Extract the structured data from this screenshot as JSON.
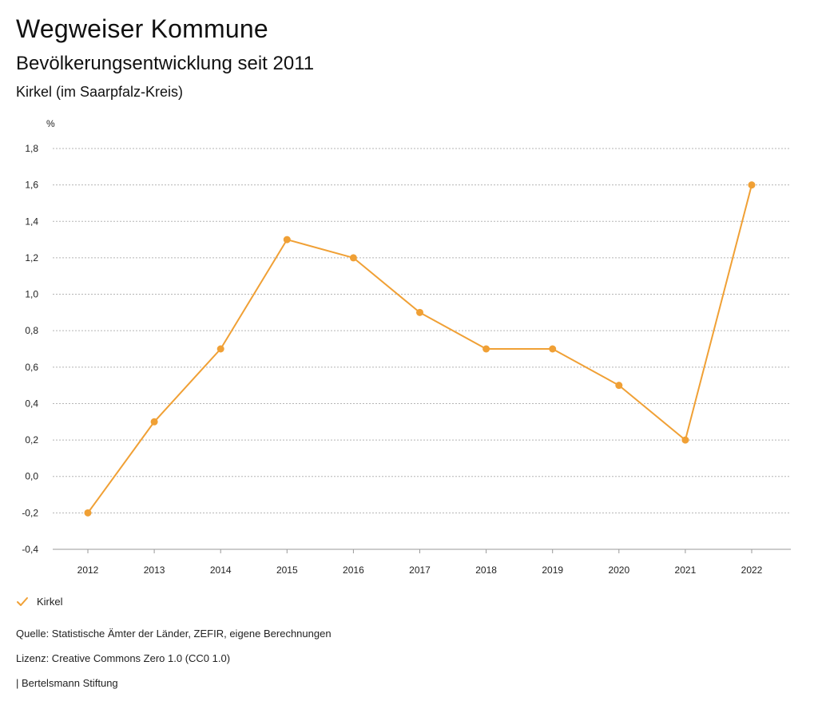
{
  "header": {
    "title": "Wegweiser Kommune",
    "subtitle": "Bevölkerungsentwicklung seit 2011",
    "region": "Kirkel (im Saarpfalz-Kreis)"
  },
  "chart_data": {
    "type": "line",
    "ylabel": "%",
    "xlabel": "",
    "categories": [
      "2012",
      "2013",
      "2014",
      "2015",
      "2016",
      "2017",
      "2018",
      "2019",
      "2020",
      "2021",
      "2022"
    ],
    "series": [
      {
        "name": "Kirkel",
        "color": "#f0a035",
        "values": [
          -0.2,
          0.3,
          0.7,
          1.3,
          1.2,
          0.9,
          0.7,
          0.7,
          0.5,
          0.2,
          1.6
        ]
      }
    ],
    "ylim": [
      -0.4,
      1.8
    ],
    "yticks": [
      -0.4,
      -0.2,
      0.0,
      0.2,
      0.4,
      0.6,
      0.8,
      1.0,
      1.2,
      1.4,
      1.6,
      1.8
    ],
    "ytick_labels": [
      "-0,4",
      "-0,2",
      "0,0",
      "0,2",
      "0,4",
      "0,6",
      "0,8",
      "1,0",
      "1,2",
      "1,4",
      "1,6",
      "1,8"
    ],
    "grid": true,
    "legend": "bottom-left"
  },
  "legend": {
    "label": "Kirkel"
  },
  "footer": {
    "source": "Quelle: Statistische Ämter der Länder, ZEFIR, eigene Berechnungen",
    "license": "Lizenz: Creative Commons Zero 1.0 (CC0 1.0)",
    "publisher": "| Bertelsmann Stiftung"
  }
}
